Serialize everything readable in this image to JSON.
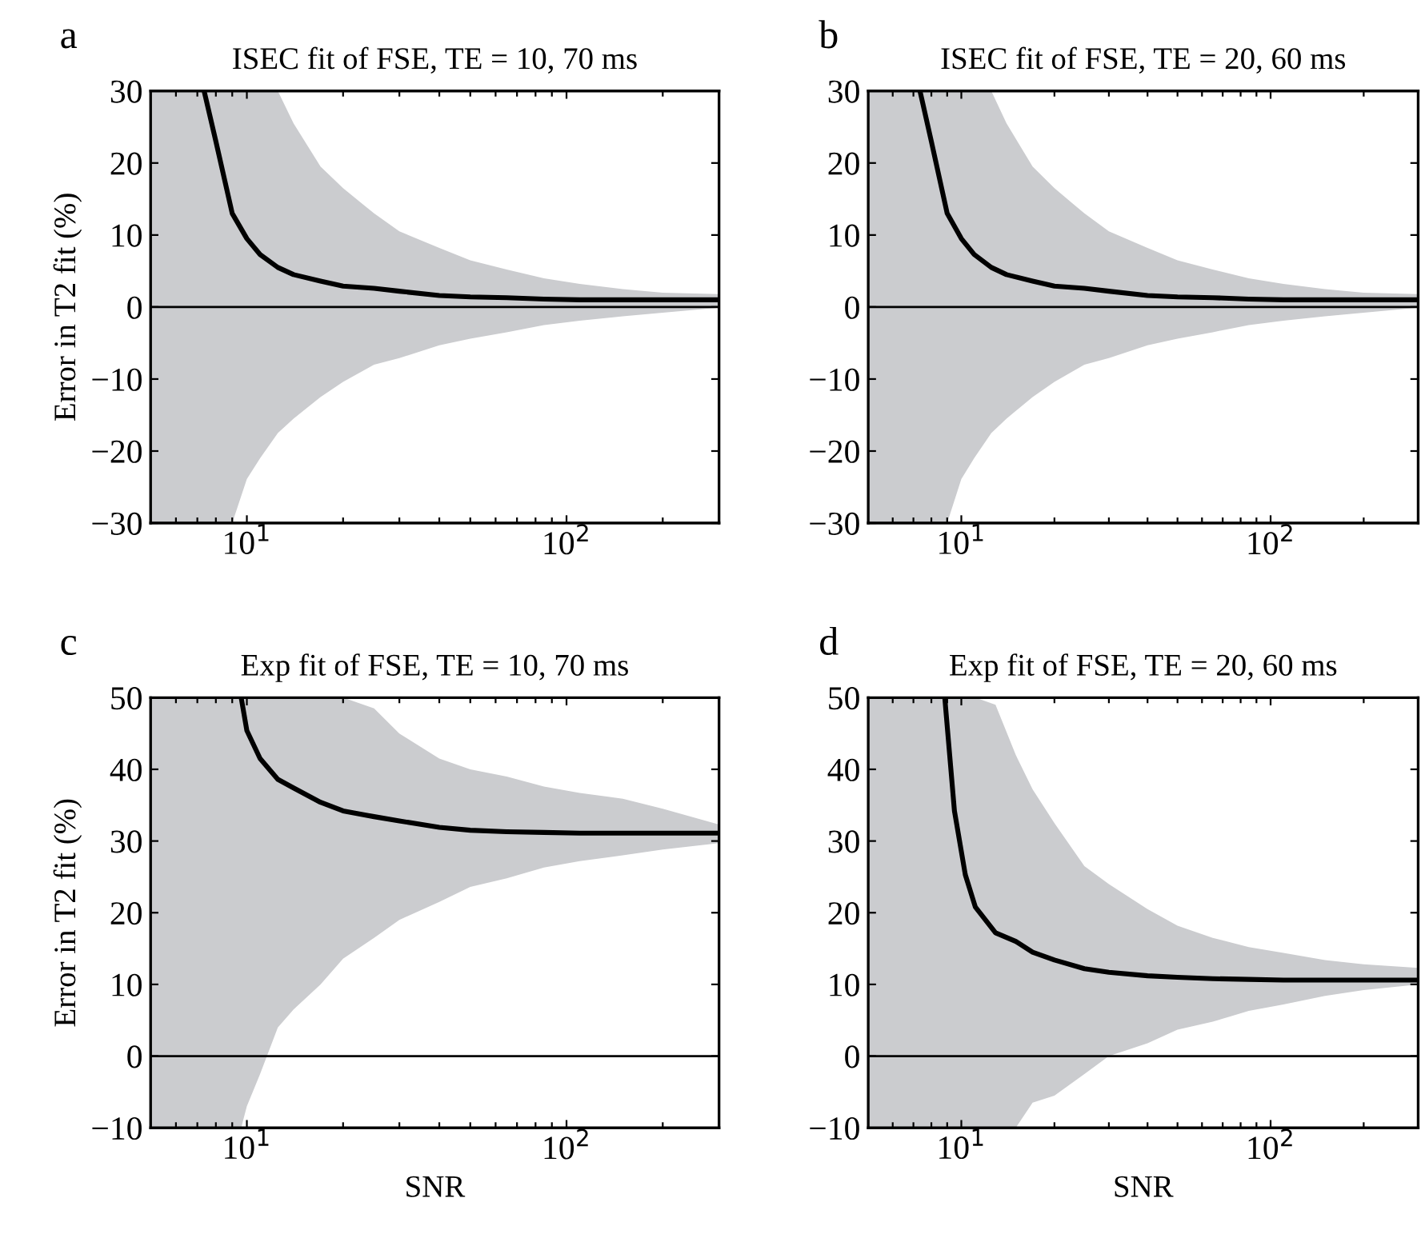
{
  "chart_data": [
    {
      "type": "line",
      "title": "ISEC fit of FSE, TE = 10, 70 ms",
      "ylabel": "Error in T2 fit (%)",
      "annotations": [
        "a"
      ],
      "log": "x",
      "grid": false,
      "tick_labels": "xy",
      "x": [
        5,
        7.35,
        8,
        9,
        10,
        11,
        12.5,
        14,
        17,
        20,
        25,
        30,
        40,
        50,
        65,
        85,
        110,
        150,
        200,
        300
      ],
      "series": [
        {
          "color": "#000000",
          "values": [
            null,
            30,
            23,
            13,
            9.5,
            7.3,
            5.5,
            4.5,
            3.6,
            2.9,
            2.6,
            2.2,
            1.6,
            1.4,
            1.3,
            1.1,
            1.0,
            1.0,
            1.0,
            1.0
          ],
          "upper": [
            30,
            30,
            30,
            30,
            30,
            30,
            30,
            25.5,
            19.5,
            16.5,
            13,
            10.5,
            8.2,
            6.5,
            5.2,
            4.0,
            3.2,
            2.5,
            2.0,
            1.8
          ],
          "lower": [
            -30,
            -30,
            -30,
            -30,
            -23.9,
            -21,
            -17.5,
            -15.5,
            -12.5,
            -10.4,
            -8,
            -7.1,
            -5.3,
            -4.4,
            -3.5,
            -2.5,
            -1.9,
            -1.3,
            -0.8,
            -0.1
          ]
        }
      ],
      "xlim": [
        5,
        300
      ],
      "xticks": [
        {
          "value": 6,
          "label": null
        },
        {
          "value": 7,
          "label": null
        },
        {
          "value": 8,
          "label": null
        },
        {
          "value": 9,
          "label": null
        },
        {
          "value": 10,
          "label": "10$^{1}$"
        },
        {
          "value": 20,
          "label": null
        },
        {
          "value": 30,
          "label": null
        },
        {
          "value": 40,
          "label": null
        },
        {
          "value": 50,
          "label": null
        },
        {
          "value": 60,
          "label": null
        },
        {
          "value": 70,
          "label": null
        },
        {
          "value": 80,
          "label": null
        },
        {
          "value": 90,
          "label": null
        },
        {
          "value": 100,
          "label": "10$^{2}$"
        },
        {
          "value": 200,
          "label": null
        }
      ],
      "ylim": [
        -30,
        30
      ],
      "yticks": [
        -30,
        -20,
        -10,
        0,
        10,
        20,
        30
      ],
      "ref_lines": [
        {
          "axis": "y",
          "value": 0,
          "color": "#000000"
        }
      ]
    },
    {
      "type": "line",
      "title": "ISEC fit of FSE, TE = 20, 60 ms",
      "annotations": [
        "b"
      ],
      "log": "x",
      "grid": false,
      "x": [
        5,
        7.35,
        8,
        9,
        10,
        11,
        12.5,
        14,
        17,
        20,
        25,
        30,
        40,
        50,
        65,
        85,
        110,
        150,
        200,
        300
      ],
      "series": [
        {
          "color": "#000000",
          "values": [
            null,
            30,
            23,
            13,
            9.5,
            7.3,
            5.5,
            4.5,
            3.6,
            2.9,
            2.6,
            2.2,
            1.6,
            1.4,
            1.3,
            1.1,
            1.0,
            1.0,
            1.0,
            1.0
          ],
          "upper": [
            30,
            30,
            30,
            30,
            30,
            30,
            30,
            25.5,
            19.5,
            16.5,
            13,
            10.5,
            8.2,
            6.5,
            5.2,
            4.0,
            3.2,
            2.5,
            2.0,
            1.8
          ],
          "lower": [
            -30,
            -30,
            -30,
            -30,
            -23.9,
            -21,
            -17.5,
            -15.5,
            -12.5,
            -10.4,
            -8,
            -7.1,
            -5.3,
            -4.4,
            -3.5,
            -2.5,
            -1.9,
            -1.3,
            -0.8,
            -0.1
          ]
        }
      ],
      "xlim": [
        5,
        300
      ],
      "xticks": [
        {
          "value": 6,
          "label": null
        },
        {
          "value": 7,
          "label": null
        },
        {
          "value": 8,
          "label": null
        },
        {
          "value": 9,
          "label": null
        },
        {
          "value": 10,
          "label": "10$^{1}$"
        },
        {
          "value": 20,
          "label": null
        },
        {
          "value": 30,
          "label": null
        },
        {
          "value": 40,
          "label": null
        },
        {
          "value": 50,
          "label": null
        },
        {
          "value": 60,
          "label": null
        },
        {
          "value": 70,
          "label": null
        },
        {
          "value": 80,
          "label": null
        },
        {
          "value": 90,
          "label": null
        },
        {
          "value": 100,
          "label": "10$^{2}$"
        },
        {
          "value": 200,
          "label": null
        }
      ],
      "ylim": [
        -30,
        30
      ],
      "yticks": [
        -30,
        -20,
        -10,
        0,
        10,
        20,
        30
      ],
      "ref_lines": [
        {
          "axis": "y",
          "value": 0,
          "color": "#000000"
        }
      ]
    },
    {
      "type": "line",
      "title": "Exp fit of FSE, TE = 10, 70 ms",
      "ylabel": "Error in T2 fit (%)",
      "xlabel": "SNR",
      "annotations": [
        "c"
      ],
      "log": "x",
      "grid": false,
      "x": [
        5,
        9.6,
        10,
        11,
        12.5,
        14,
        17,
        20,
        25,
        30,
        40,
        50,
        65,
        85,
        110,
        150,
        200,
        300
      ],
      "series": [
        {
          "color": "#000000",
          "values": [
            null,
            50,
            45.4,
            41.5,
            38.6,
            37.4,
            35.4,
            34.2,
            33.4,
            32.8,
            31.9,
            31.5,
            31.3,
            31.2,
            31.1,
            31.1,
            31.1,
            31.1
          ],
          "upper": [
            50,
            50,
            50,
            50,
            50,
            50,
            50,
            50,
            48.5,
            45,
            41.5,
            40,
            39,
            37.6,
            36.7,
            35.9,
            34.5,
            32.3
          ],
          "lower": [
            -10,
            -10,
            -7,
            -2.5,
            4,
            6.5,
            10,
            13.6,
            16.5,
            19,
            21.5,
            23.6,
            24.8,
            26.3,
            27.2,
            28,
            28.8,
            29.7
          ]
        }
      ],
      "xlim": [
        5,
        300
      ],
      "xticks": [
        {
          "value": 6,
          "label": null
        },
        {
          "value": 7,
          "label": null
        },
        {
          "value": 8,
          "label": null
        },
        {
          "value": 9,
          "label": null
        },
        {
          "value": 10,
          "label": "10$^{1}$"
        },
        {
          "value": 20,
          "label": null
        },
        {
          "value": 30,
          "label": null
        },
        {
          "value": 40,
          "label": null
        },
        {
          "value": 50,
          "label": null
        },
        {
          "value": 60,
          "label": null
        },
        {
          "value": 70,
          "label": null
        },
        {
          "value": 80,
          "label": null
        },
        {
          "value": 90,
          "label": null
        },
        {
          "value": 100,
          "label": "10$^{2}$"
        },
        {
          "value": 200,
          "label": null
        }
      ],
      "ylim": [
        -10,
        50
      ],
      "yticks": [
        -10,
        0,
        10,
        20,
        30,
        40,
        50
      ],
      "ref_lines": [
        {
          "axis": "y",
          "value": 0,
          "color": "#000000"
        }
      ]
    },
    {
      "type": "line",
      "title": "Exp fit of FSE, TE = 20, 60 ms",
      "xlabel": "SNR",
      "annotations": [
        "d"
      ],
      "log": "x",
      "grid": false,
      "x": [
        5,
        8.84,
        9.5,
        10.3,
        11.1,
        12.9,
        15,
        17,
        20,
        25,
        30,
        40,
        50,
        65,
        85,
        110,
        150,
        200,
        300
      ],
      "series": [
        {
          "color": "#000000",
          "values": [
            null,
            50,
            34.2,
            25.3,
            20.8,
            17.2,
            16.0,
            14.5,
            13.4,
            12.2,
            11.7,
            11.2,
            11.0,
            10.8,
            10.7,
            10.6,
            10.6,
            10.6,
            10.6
          ],
          "upper": [
            50,
            50,
            50,
            50,
            50,
            49,
            42,
            37.2,
            32.5,
            26.5,
            24,
            20.5,
            18.2,
            16.5,
            15.2,
            14.4,
            13.4,
            12.8,
            12.3
          ],
          "lower": [
            -10,
            -10,
            -10,
            -10,
            -10,
            -10,
            -10,
            -6.5,
            -5.5,
            -2.5,
            0,
            1.8,
            3.7,
            4.8,
            6.3,
            7.2,
            8.4,
            9.2,
            10.0
          ]
        }
      ],
      "xlim": [
        5,
        300
      ],
      "xticks": [
        {
          "value": 6,
          "label": null
        },
        {
          "value": 7,
          "label": null
        },
        {
          "value": 8,
          "label": null
        },
        {
          "value": 9,
          "label": null
        },
        {
          "value": 10,
          "label": "10$^{1}$"
        },
        {
          "value": 20,
          "label": null
        },
        {
          "value": 30,
          "label": null
        },
        {
          "value": 40,
          "label": null
        },
        {
          "value": 50,
          "label": null
        },
        {
          "value": 60,
          "label": null
        },
        {
          "value": 70,
          "label": null
        },
        {
          "value": 80,
          "label": null
        },
        {
          "value": 90,
          "label": null
        },
        {
          "value": 100,
          "label": "10$^{2}$"
        },
        {
          "value": 200,
          "label": null
        }
      ],
      "ylim": [
        -10,
        50
      ],
      "yticks": [
        -10,
        0,
        10,
        20,
        30,
        40,
        50
      ],
      "ref_lines": [
        {
          "axis": "y",
          "value": 0,
          "color": "#000000"
        }
      ]
    }
  ]
}
